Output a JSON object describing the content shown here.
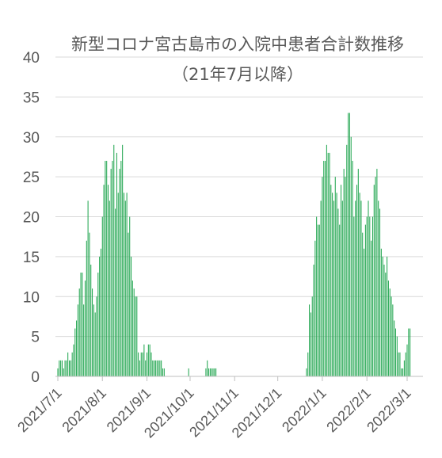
{
  "chart_data": {
    "type": "bar",
    "title": "新型コロナ宮古島市の入院中患者合計数推移",
    "subtitle": "（21年7月以降）",
    "xlabel": "",
    "ylabel": "",
    "ylim": [
      0,
      40
    ],
    "yticks": [
      "0",
      "5",
      "10",
      "15",
      "20",
      "25",
      "30",
      "35",
      "40"
    ],
    "xticks": [
      "2021/7/1",
      "2021/8/1",
      "2021/9/1",
      "2021/10/1",
      "2021/11/1",
      "2021/12/1",
      "2022/1/1",
      "2022/2/1",
      "2022/3/1"
    ],
    "grid": true,
    "bar_color": "#1aa34a",
    "grid_color": "#d9d9d9",
    "axis_color": "#bfbfbf",
    "start_date": "2021/7/1",
    "values": [
      1,
      2,
      2,
      2,
      1,
      2,
      2,
      3,
      2,
      2,
      3,
      4,
      6,
      7,
      9,
      11,
      13,
      13,
      9,
      12,
      17,
      22,
      18,
      14,
      11,
      9,
      8,
      10,
      13,
      15,
      16,
      20,
      24,
      27,
      27,
      24,
      22,
      26,
      27,
      29,
      21,
      28,
      23,
      26,
      27,
      29,
      23,
      22,
      23,
      18,
      20,
      15,
      12,
      11,
      10,
      10,
      3,
      2,
      3,
      3,
      4,
      2,
      3,
      4,
      4,
      3,
      2,
      2,
      2,
      2,
      2,
      2,
      2,
      1,
      1,
      0,
      0,
      0,
      0,
      0,
      0,
      0,
      0,
      0,
      0,
      0,
      0,
      0,
      0,
      0,
      0,
      1,
      0,
      0,
      0,
      0,
      0,
      0,
      0,
      0,
      0,
      0,
      0,
      1,
      2,
      1,
      1,
      1,
      1,
      1,
      1,
      0,
      0,
      0,
      0,
      0,
      0,
      0,
      0,
      0,
      0,
      0,
      0,
      0,
      0,
      0,
      0,
      0,
      0,
      0,
      0,
      0,
      0,
      0,
      0,
      0,
      0,
      0,
      0,
      0,
      0,
      0,
      0,
      0,
      0,
      0,
      0,
      0,
      0,
      0,
      0,
      0,
      0,
      0,
      0,
      0,
      0,
      0,
      0,
      0,
      0,
      0,
      0,
      0,
      0,
      0,
      0,
      0,
      0,
      0,
      0,
      0,
      0,
      1,
      3,
      9,
      8,
      10,
      14,
      17,
      20,
      19,
      19,
      22,
      25,
      27,
      27,
      29,
      28,
      28,
      24,
      23,
      22,
      25,
      23,
      21,
      19,
      24,
      22,
      26,
      25,
      29,
      33,
      33,
      30,
      27,
      20,
      22,
      24,
      26,
      23,
      22,
      18,
      16,
      19,
      20,
      22,
      20,
      17,
      20,
      24,
      25,
      26,
      22,
      21,
      16,
      15,
      14,
      13,
      15,
      12,
      11,
      10,
      9,
      7,
      6,
      5,
      3,
      3,
      1,
      1,
      2,
      3,
      4,
      6,
      6
    ]
  }
}
